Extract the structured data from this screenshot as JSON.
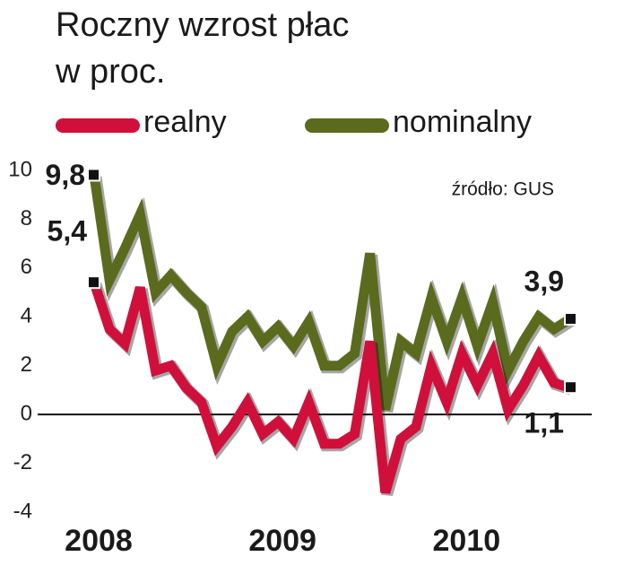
{
  "chart_data": {
    "type": "line",
    "title": "Roczny wzrost płac",
    "subtitle": "w proc.",
    "source": "źródło: GUS",
    "categories": [
      "2008",
      null,
      null,
      null,
      null,
      null,
      null,
      null,
      null,
      null,
      null,
      null,
      "2009",
      null,
      null,
      null,
      null,
      null,
      null,
      null,
      null,
      null,
      null,
      null,
      "2010",
      null,
      null,
      null,
      null,
      null,
      null,
      null
    ],
    "series": [
      {
        "name": "realny",
        "color": "#d0103a",
        "values": [
          5.4,
          3.5,
          2.9,
          5.2,
          1.8,
          2.0,
          1.1,
          0.5,
          -1.3,
          -0.5,
          0.5,
          -0.8,
          -0.3,
          -1.0,
          0.5,
          -1.2,
          -1.2,
          -0.8,
          3.0,
          -3.2,
          -1.0,
          -0.5,
          2.0,
          0.5,
          2.5,
          1.2,
          2.5,
          0.2,
          1.2,
          2.4,
          1.3,
          1.1
        ],
        "value_labels": [
          "5,4",
          null,
          null,
          null,
          null,
          null,
          null,
          null,
          null,
          null,
          null,
          null,
          null,
          null,
          null,
          null,
          null,
          null,
          null,
          null,
          null,
          null,
          null,
          null,
          null,
          null,
          null,
          null,
          null,
          null,
          null,
          "1,1"
        ]
      },
      {
        "name": "nominalny",
        "color": "#5a6b1e",
        "values": [
          9.8,
          5.5,
          6.8,
          8.2,
          5.0,
          5.7,
          5.0,
          4.4,
          2.0,
          3.4,
          4.0,
          3.0,
          3.6,
          2.8,
          3.8,
          2.0,
          2.0,
          2.5,
          6.6,
          0.2,
          3.0,
          2.5,
          4.8,
          3.0,
          4.8,
          2.8,
          4.6,
          1.8,
          3.0,
          4.0,
          3.5,
          3.9
        ],
        "value_labels": [
          "9,8",
          null,
          null,
          null,
          null,
          null,
          null,
          null,
          null,
          null,
          null,
          null,
          null,
          null,
          null,
          null,
          null,
          null,
          null,
          null,
          null,
          null,
          null,
          null,
          null,
          null,
          null,
          null,
          null,
          null,
          null,
          "3,9"
        ]
      }
    ],
    "ylim": [
      -4,
      10
    ],
    "yticks": [
      -4,
      -2,
      0,
      2,
      4,
      6,
      8,
      10
    ],
    "grid": false,
    "zero_line": true
  }
}
